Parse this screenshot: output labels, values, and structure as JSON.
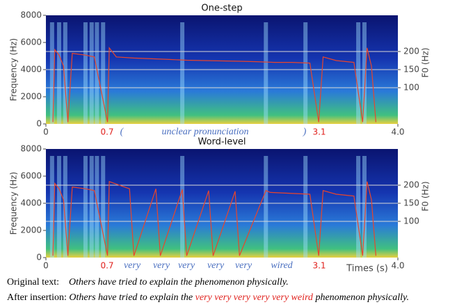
{
  "chart_data": [
    {
      "type": "line",
      "title": "One-step",
      "ylabel": "Frequency (Hz)",
      "y2label": "F0 (Hz)",
      "xlim": [
        0,
        4
      ],
      "xticks": [
        0,
        {
          "value": 4,
          "label": "4.0"
        }
      ],
      "ylim": [
        0,
        8000
      ],
      "yticks": [
        0,
        2000,
        4000,
        6000,
        8000
      ],
      "y2lim": [
        0,
        300
      ],
      "y2ticks": [
        100,
        150,
        200
      ],
      "grid": true,
      "annotations": [
        {
          "text": "0.7",
          "color": "#e0201c"
        },
        {
          "text": "(",
          "color": "#4a6fc0"
        },
        {
          "text": "unclear pronunciation",
          "color": "#4a6fc0"
        },
        {
          "text": ")",
          "color": "#4a6fc0"
        },
        {
          "text": "3.1",
          "color": "#e0201c"
        }
      ],
      "series": [
        {
          "color": "#e8452c",
          "axis": "y2",
          "x": [
            0.08,
            0.1,
            0.15,
            0.2,
            0.25,
            0.3,
            0.45,
            0.55,
            0.7,
            0.72,
            0.8,
            1.0,
            1.2,
            1.4,
            1.6,
            1.8,
            2.0,
            2.2,
            2.4,
            2.6,
            2.8,
            3.0,
            3.1,
            3.15,
            3.3,
            3.5,
            3.6,
            3.65,
            3.7,
            3.75
          ],
          "values": [
            5,
            205,
            190,
            160,
            5,
            195,
            190,
            185,
            5,
            210,
            185,
            182,
            180,
            178,
            176,
            175,
            174,
            173,
            172,
            170,
            170,
            168,
            5,
            185,
            175,
            170,
            5,
            210,
            160,
            5
          ]
        }
      ]
    },
    {
      "type": "line",
      "title": "Word-level",
      "ylabel": "Frequency (Hz)",
      "y2label": "F0 (Hz)",
      "xlabel": "Times (s)",
      "xlim": [
        0,
        4
      ],
      "xticks": [
        0,
        {
          "value": 4,
          "label": "4.0"
        }
      ],
      "ylim": [
        0,
        8000
      ],
      "yticks": [
        0,
        2000,
        4000,
        6000,
        8000
      ],
      "y2lim": [
        0,
        300
      ],
      "y2ticks": [
        100,
        150,
        200
      ],
      "grid": true,
      "annotations": [
        {
          "text": "0.7",
          "color": "#e0201c"
        },
        {
          "text": "very",
          "color": "#4a6fc0"
        },
        {
          "text": "very",
          "color": "#4a6fc0"
        },
        {
          "text": "very",
          "color": "#4a6fc0"
        },
        {
          "text": "very",
          "color": "#4a6fc0"
        },
        {
          "text": "very",
          "color": "#4a6fc0"
        },
        {
          "text": "wired",
          "color": "#4a6fc0"
        },
        {
          "text": "3.1",
          "color": "#e0201c"
        }
      ],
      "series": [
        {
          "color": "#e8452c",
          "axis": "y2",
          "x": [
            0.08,
            0.1,
            0.15,
            0.2,
            0.25,
            0.3,
            0.45,
            0.55,
            0.7,
            0.72,
            0.95,
            1.0,
            1.25,
            1.3,
            1.55,
            1.6,
            1.85,
            1.9,
            2.15,
            2.2,
            2.5,
            2.55,
            3.0,
            3.1,
            3.15,
            3.3,
            3.5,
            3.6,
            3.65,
            3.7,
            3.75
          ],
          "values": [
            5,
            205,
            190,
            160,
            5,
            195,
            190,
            185,
            5,
            210,
            190,
            5,
            190,
            5,
            188,
            5,
            185,
            5,
            183,
            5,
            185,
            180,
            175,
            5,
            185,
            175,
            170,
            5,
            210,
            160,
            5
          ]
        }
      ]
    }
  ],
  "caption": {
    "original": {
      "label": "Original text:",
      "text": "Others have tried to explain the phenomenon physically."
    },
    "inserted": {
      "label": "After insertion:",
      "before": "Others have tried to explain the",
      "highlight": "very very very very very weird",
      "after": "phenomenon physically."
    }
  }
}
